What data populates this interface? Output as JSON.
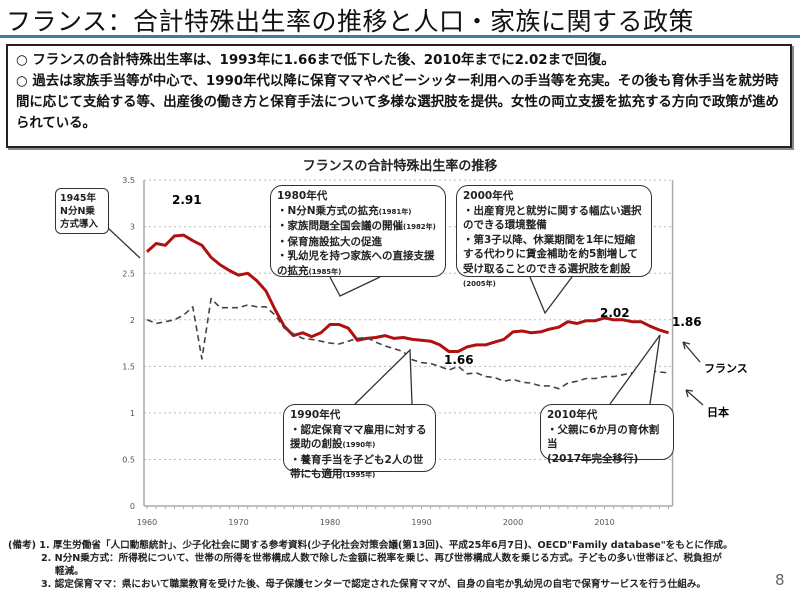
{
  "title": "フランス：合計特殊出生率の推移と人口・家族に関する政策",
  "summary": [
    "○ フランスの合計特殊出生率は、1993年に1.66まで低下した後、2010年までに2.02まで回復。",
    "○ 過去は家族手当等が中心で、1990年代以降に保育ママやベビーシッター利用への手当等を充実。その後も育休手当を就労時間に応じて支給する等、出産後の働き方と保育手法について多様な選択肢を提供。女性の両立支援を拡充する方向で政策が進められている。"
  ],
  "chart_data": {
    "type": "line",
    "title": "フランスの合計特殊出生率の推移",
    "xlabel": "",
    "ylabel": "",
    "xlim": [
      1960,
      2017
    ],
    "ylim": [
      0,
      3.5
    ],
    "x_ticks": [
      "1960",
      "1970",
      "1980",
      "1990",
      "2000",
      "2010"
    ],
    "y_ticks": [
      "0",
      "0.5",
      "1",
      "1.5",
      "2",
      "2.5",
      "3",
      "3.5"
    ],
    "grid": "horizontal dotted",
    "x": [
      1960,
      1961,
      1962,
      1963,
      1964,
      1965,
      1966,
      1967,
      1968,
      1969,
      1970,
      1971,
      1972,
      1973,
      1974,
      1975,
      1976,
      1977,
      1978,
      1979,
      1980,
      1981,
      1982,
      1983,
      1984,
      1985,
      1986,
      1987,
      1988,
      1989,
      1990,
      1991,
      1992,
      1993,
      1994,
      1995,
      1996,
      1997,
      1998,
      1999,
      2000,
      2001,
      2002,
      2003,
      2004,
      2005,
      2006,
      2007,
      2008,
      2009,
      2010,
      2011,
      2012,
      2013,
      2014,
      2015,
      2016,
      2017
    ],
    "series": [
      {
        "name": "フランス",
        "color": "#b01010",
        "style": "solid",
        "values": [
          2.73,
          2.82,
          2.8,
          2.9,
          2.91,
          2.85,
          2.8,
          2.67,
          2.59,
          2.53,
          2.48,
          2.5,
          2.42,
          2.31,
          2.11,
          1.93,
          1.83,
          1.86,
          1.82,
          1.86,
          1.95,
          1.95,
          1.91,
          1.78,
          1.8,
          1.81,
          1.83,
          1.8,
          1.81,
          1.79,
          1.78,
          1.77,
          1.73,
          1.66,
          1.66,
          1.71,
          1.73,
          1.73,
          1.76,
          1.79,
          1.87,
          1.88,
          1.86,
          1.87,
          1.9,
          1.92,
          1.98,
          1.96,
          1.99,
          1.99,
          2.02,
          2.0,
          2.0,
          1.98,
          1.98,
          1.93,
          1.89,
          1.86
        ]
      },
      {
        "name": "日本",
        "color": "#444444",
        "style": "dashed",
        "values": [
          2.0,
          1.96,
          1.98,
          2.0,
          2.05,
          2.14,
          1.58,
          2.23,
          2.13,
          2.13,
          2.13,
          2.16,
          2.14,
          2.14,
          2.05,
          1.91,
          1.85,
          1.8,
          1.79,
          1.77,
          1.75,
          1.74,
          1.77,
          1.8,
          1.81,
          1.76,
          1.72,
          1.69,
          1.66,
          1.57,
          1.54,
          1.53,
          1.5,
          1.46,
          1.5,
          1.42,
          1.43,
          1.39,
          1.38,
          1.34,
          1.36,
          1.33,
          1.32,
          1.29,
          1.29,
          1.26,
          1.32,
          1.34,
          1.37,
          1.37,
          1.39,
          1.39,
          1.41,
          1.43,
          1.42,
          1.45,
          1.44,
          1.43
        ]
      }
    ],
    "data_labels": [
      "2.91",
      "1.66",
      "2.02",
      "1.86"
    ],
    "annotations": {
      "y1945": [
        "1945年",
        "N分N乗",
        "方式導入"
      ],
      "y1980s": {
        "head": "1980年代",
        "lines": [
          [
            "・N分N乗方式の拡充",
            "(1981年)"
          ],
          [
            "・家族問題全国会議の開催",
            "(1982年)"
          ],
          [
            "・保育施設拡大の促進",
            ""
          ],
          [
            "・乳幼児を持つ家族への直接支援の拡充",
            "(1985年)"
          ]
        ]
      },
      "y1990s": {
        "head": "1990年代",
        "lines": [
          [
            "・認定保育ママ雇用に対する援助の創設",
            "(1990年)"
          ],
          [
            "・養育手当を子ども2人の世帯にも適用",
            "(1995年)"
          ]
        ]
      },
      "y2000s": {
        "head": "2000年代",
        "lines": [
          [
            "・出産育児と就労に関する幅広い選択のできる環境整備",
            ""
          ],
          [
            "・第3子以降、休業期間を1年に短縮する代わりに賃金補助を約5割増して受け取ることのできる選択肢を創設",
            "(2005年)"
          ]
        ]
      },
      "y2010s": {
        "head": "2010年代",
        "lines": [
          [
            "・父親に6か月の育休割当",
            ""
          ],
          [
            "(2017年完全移行)",
            ""
          ]
        ]
      }
    }
  },
  "notes": [
    "(備考) 1. 厚生労働省「人口動態統計」、少子化社会に関する参考資料(少子化社会対策会議(第13回)、平成25年6月7日)、OECD\"Family database\"をもとに作成。",
    "2. N分N乗方式：所得税について、世帯の所得を世帯構成人数で除した金額に税率を乗じ、再び世帯構成人数を乗じる方式。子どもの多い世帯ほど、税負担が",
    "軽減。",
    "3. 認定保育ママ：県において職業教育を受けた後、母子保護センターで認定された保育ママが、自身の自宅か乳幼児の自宅で保育サービスを行う仕組み。"
  ],
  "page_number": "8"
}
